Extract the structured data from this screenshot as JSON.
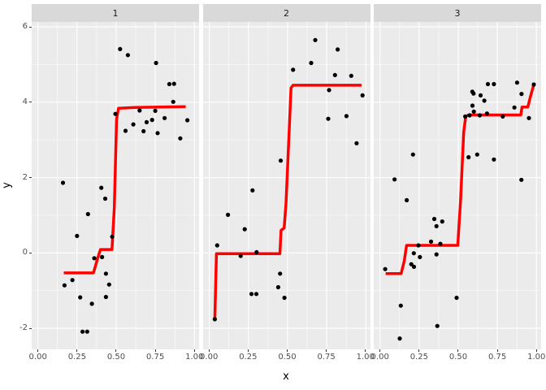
{
  "chart_data": {
    "type": "scatter",
    "title": "",
    "xlabel": "x",
    "ylabel": "y",
    "xlim": [
      -0.04,
      1.03
    ],
    "ylim": [
      -2.56,
      6.13
    ],
    "x_ticks": [
      0,
      0.25,
      0.5,
      0.75,
      1.0
    ],
    "x_tick_labels": [
      "0.00",
      "0.25",
      "0.50",
      "0.75",
      "1.00"
    ],
    "x_minor_ticks": [
      0.125,
      0.375,
      0.625,
      0.875
    ],
    "y_ticks": [
      -2,
      0,
      2,
      4,
      6
    ],
    "y_tick_labels": [
      "-2",
      "0",
      "2",
      "4",
      "6"
    ],
    "y_minor_ticks": [
      -1,
      1,
      3,
      5
    ],
    "grid": "on",
    "legend": "none",
    "style": {
      "point_color": "#000000",
      "line_color": "#FF0000",
      "panel_bg": "#EBEBEB",
      "strip_bg": "#D9D9D9",
      "grid_color": "#FFFFFF",
      "tick_text_color": "#4D4D4D"
    },
    "facets": [
      {
        "label": "1",
        "points": [
          [
            0.16,
            1.86
          ],
          [
            0.405,
            1.73
          ],
          [
            0.43,
            1.44
          ],
          [
            0.32,
            1.03
          ],
          [
            0.25,
            0.45
          ],
          [
            0.475,
            0.43
          ],
          [
            0.36,
            -0.14
          ],
          [
            0.41,
            -0.11
          ],
          [
            0.435,
            -0.55
          ],
          [
            0.17,
            -0.86
          ],
          [
            0.22,
            -0.72
          ],
          [
            0.455,
            -0.84
          ],
          [
            0.27,
            -1.18
          ],
          [
            0.345,
            -1.35
          ],
          [
            0.435,
            -1.17
          ],
          [
            0.285,
            -2.09
          ],
          [
            0.315,
            -2.09
          ],
          [
            0.495,
            3.69
          ],
          [
            0.525,
            5.41
          ],
          [
            0.575,
            5.25
          ],
          [
            0.755,
            5.04
          ],
          [
            0.84,
            4.48
          ],
          [
            0.87,
            4.49
          ],
          [
            0.865,
            4.01
          ],
          [
            0.65,
            3.78
          ],
          [
            0.75,
            3.77
          ],
          [
            0.81,
            3.58
          ],
          [
            0.73,
            3.53
          ],
          [
            0.695,
            3.47
          ],
          [
            0.955,
            3.52
          ],
          [
            0.61,
            3.41
          ],
          [
            0.56,
            3.24
          ],
          [
            0.675,
            3.23
          ],
          [
            0.765,
            3.18
          ],
          [
            0.91,
            3.04
          ]
        ],
        "step_line": [
          [
            0.165,
            -0.53
          ],
          [
            0.355,
            -0.53
          ],
          [
            0.385,
            -0.1
          ],
          [
            0.4,
            0.09
          ],
          [
            0.473,
            0.09
          ],
          [
            0.488,
            1.2
          ],
          [
            0.503,
            3.55
          ],
          [
            0.515,
            3.84
          ],
          [
            0.62,
            3.86
          ],
          [
            0.945,
            3.88
          ]
        ]
      },
      {
        "label": "2",
        "points": [
          [
            0.677,
            5.65
          ],
          [
            0.82,
            5.4
          ],
          [
            0.651,
            5.04
          ],
          [
            0.535,
            4.86
          ],
          [
            0.803,
            4.72
          ],
          [
            0.907,
            4.7
          ],
          [
            0.765,
            4.32
          ],
          [
            0.979,
            4.18
          ],
          [
            0.76,
            3.56
          ],
          [
            0.876,
            3.63
          ],
          [
            0.941,
            2.91
          ],
          [
            0.456,
            2.45
          ],
          [
            0.276,
            1.66
          ],
          [
            0.119,
            1.01
          ],
          [
            0.226,
            0.63
          ],
          [
            0.05,
            0.2
          ],
          [
            0.2,
            -0.08
          ],
          [
            0.302,
            0.02
          ],
          [
            0.452,
            -0.55
          ],
          [
            0.44,
            -0.91
          ],
          [
            0.269,
            -1.09
          ],
          [
            0.3,
            -1.09
          ],
          [
            0.48,
            -1.19
          ],
          [
            0.035,
            -1.76
          ]
        ],
        "step_line": [
          [
            0.035,
            -1.76
          ],
          [
            0.045,
            -0.02
          ],
          [
            0.451,
            -0.02
          ],
          [
            0.458,
            0.6
          ],
          [
            0.478,
            0.66
          ],
          [
            0.49,
            1.3
          ],
          [
            0.522,
            4.38
          ],
          [
            0.535,
            4.45
          ],
          [
            0.973,
            4.45
          ]
        ]
      },
      {
        "label": "3",
        "points": [
          [
            0.69,
            4.48
          ],
          [
            0.728,
            4.48
          ],
          [
            0.876,
            4.52
          ],
          [
            0.983,
            4.47
          ],
          [
            0.59,
            4.28
          ],
          [
            0.598,
            4.23
          ],
          [
            0.643,
            4.18
          ],
          [
            0.905,
            4.22
          ],
          [
            0.667,
            4.04
          ],
          [
            0.591,
            3.91
          ],
          [
            0.859,
            3.86
          ],
          [
            0.6,
            3.75
          ],
          [
            0.545,
            3.62
          ],
          [
            0.573,
            3.65
          ],
          [
            0.638,
            3.65
          ],
          [
            0.684,
            3.7
          ],
          [
            0.785,
            3.62
          ],
          [
            0.952,
            3.58
          ],
          [
            0.211,
            2.61
          ],
          [
            0.566,
            2.54
          ],
          [
            0.621,
            2.61
          ],
          [
            0.728,
            2.48
          ],
          [
            0.093,
            1.95
          ],
          [
            0.904,
            1.94
          ],
          [
            0.171,
            1.4
          ],
          [
            0.347,
            0.9
          ],
          [
            0.398,
            0.835
          ],
          [
            0.361,
            0.71
          ],
          [
            0.326,
            0.3
          ],
          [
            0.386,
            0.24
          ],
          [
            0.245,
            0.2
          ],
          [
            0.216,
            -0.01
          ],
          [
            0.255,
            -0.11
          ],
          [
            0.361,
            -0.04
          ],
          [
            0.2,
            -0.3
          ],
          [
            0.217,
            -0.37
          ],
          [
            0.033,
            -0.43
          ],
          [
            0.49,
            -1.19
          ],
          [
            0.133,
            -1.4
          ],
          [
            0.366,
            -1.94
          ],
          [
            0.126,
            -2.27
          ]
        ],
        "step_line": [
          [
            0.036,
            -0.55
          ],
          [
            0.135,
            -0.55
          ],
          [
            0.155,
            -0.22
          ],
          [
            0.17,
            0.2
          ],
          [
            0.497,
            0.2
          ],
          [
            0.515,
            1.4
          ],
          [
            0.535,
            3.2
          ],
          [
            0.548,
            3.62
          ],
          [
            0.565,
            3.66
          ],
          [
            0.9,
            3.66
          ],
          [
            0.908,
            3.87
          ],
          [
            0.945,
            3.87
          ],
          [
            0.962,
            4.15
          ],
          [
            0.983,
            4.47
          ]
        ]
      }
    ]
  }
}
